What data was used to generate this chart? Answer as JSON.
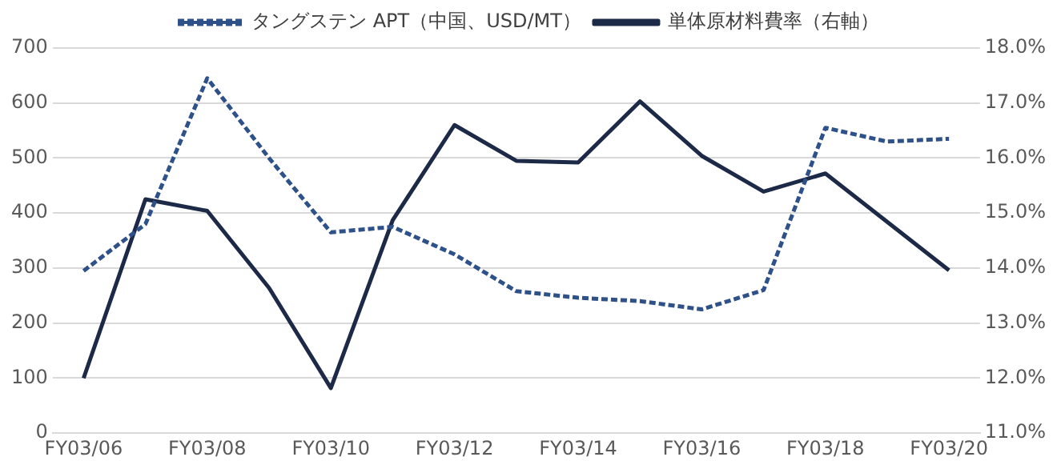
{
  "chart_data": {
    "type": "line",
    "categories": [
      "FY03/06",
      null,
      "FY03/08",
      null,
      "FY03/10",
      null,
      "FY03/12",
      null,
      "FY03/14",
      null,
      "FY03/16",
      null,
      "FY03/18",
      null,
      "FY03/20"
    ],
    "series": [
      {
        "name": "タングステン APT（中国、USD/MT）",
        "color": "#2f5189",
        "line_style": "dashed",
        "values": [
          295,
          380,
          645,
          500,
          365,
          375,
          325,
          258,
          246,
          240,
          225,
          260,
          555,
          530,
          535
        ]
      },
      {
        "name": "単体原材料費率（右軸）",
        "color": "#1c2a48",
        "line_style": "solid",
        "axis": "y2",
        "values": [
          12.0,
          15.25,
          15.04,
          13.64,
          11.82,
          14.87,
          16.6,
          15.95,
          15.92,
          17.03,
          16.04,
          15.39,
          15.72,
          14.84,
          13.96
        ]
      }
    ],
    "ylim": [
      0,
      700
    ],
    "yticks": [
      0,
      100,
      200,
      300,
      400,
      500,
      600,
      700
    ],
    "y2lim": [
      11,
      18
    ],
    "y2ticks": [
      {
        "value": 11,
        "label": "11.0%"
      },
      {
        "value": 12,
        "label": "12.0%"
      },
      {
        "value": 13,
        "label": "13.0%"
      },
      {
        "value": 14,
        "label": "14.0%"
      },
      {
        "value": 15,
        "label": "15.0%"
      },
      {
        "value": 16,
        "label": "16.0%"
      },
      {
        "value": 17,
        "label": "17.0%"
      },
      {
        "value": 18,
        "label": "18.0%"
      }
    ],
    "grid": "y",
    "legend": "top",
    "marker": "none"
  }
}
